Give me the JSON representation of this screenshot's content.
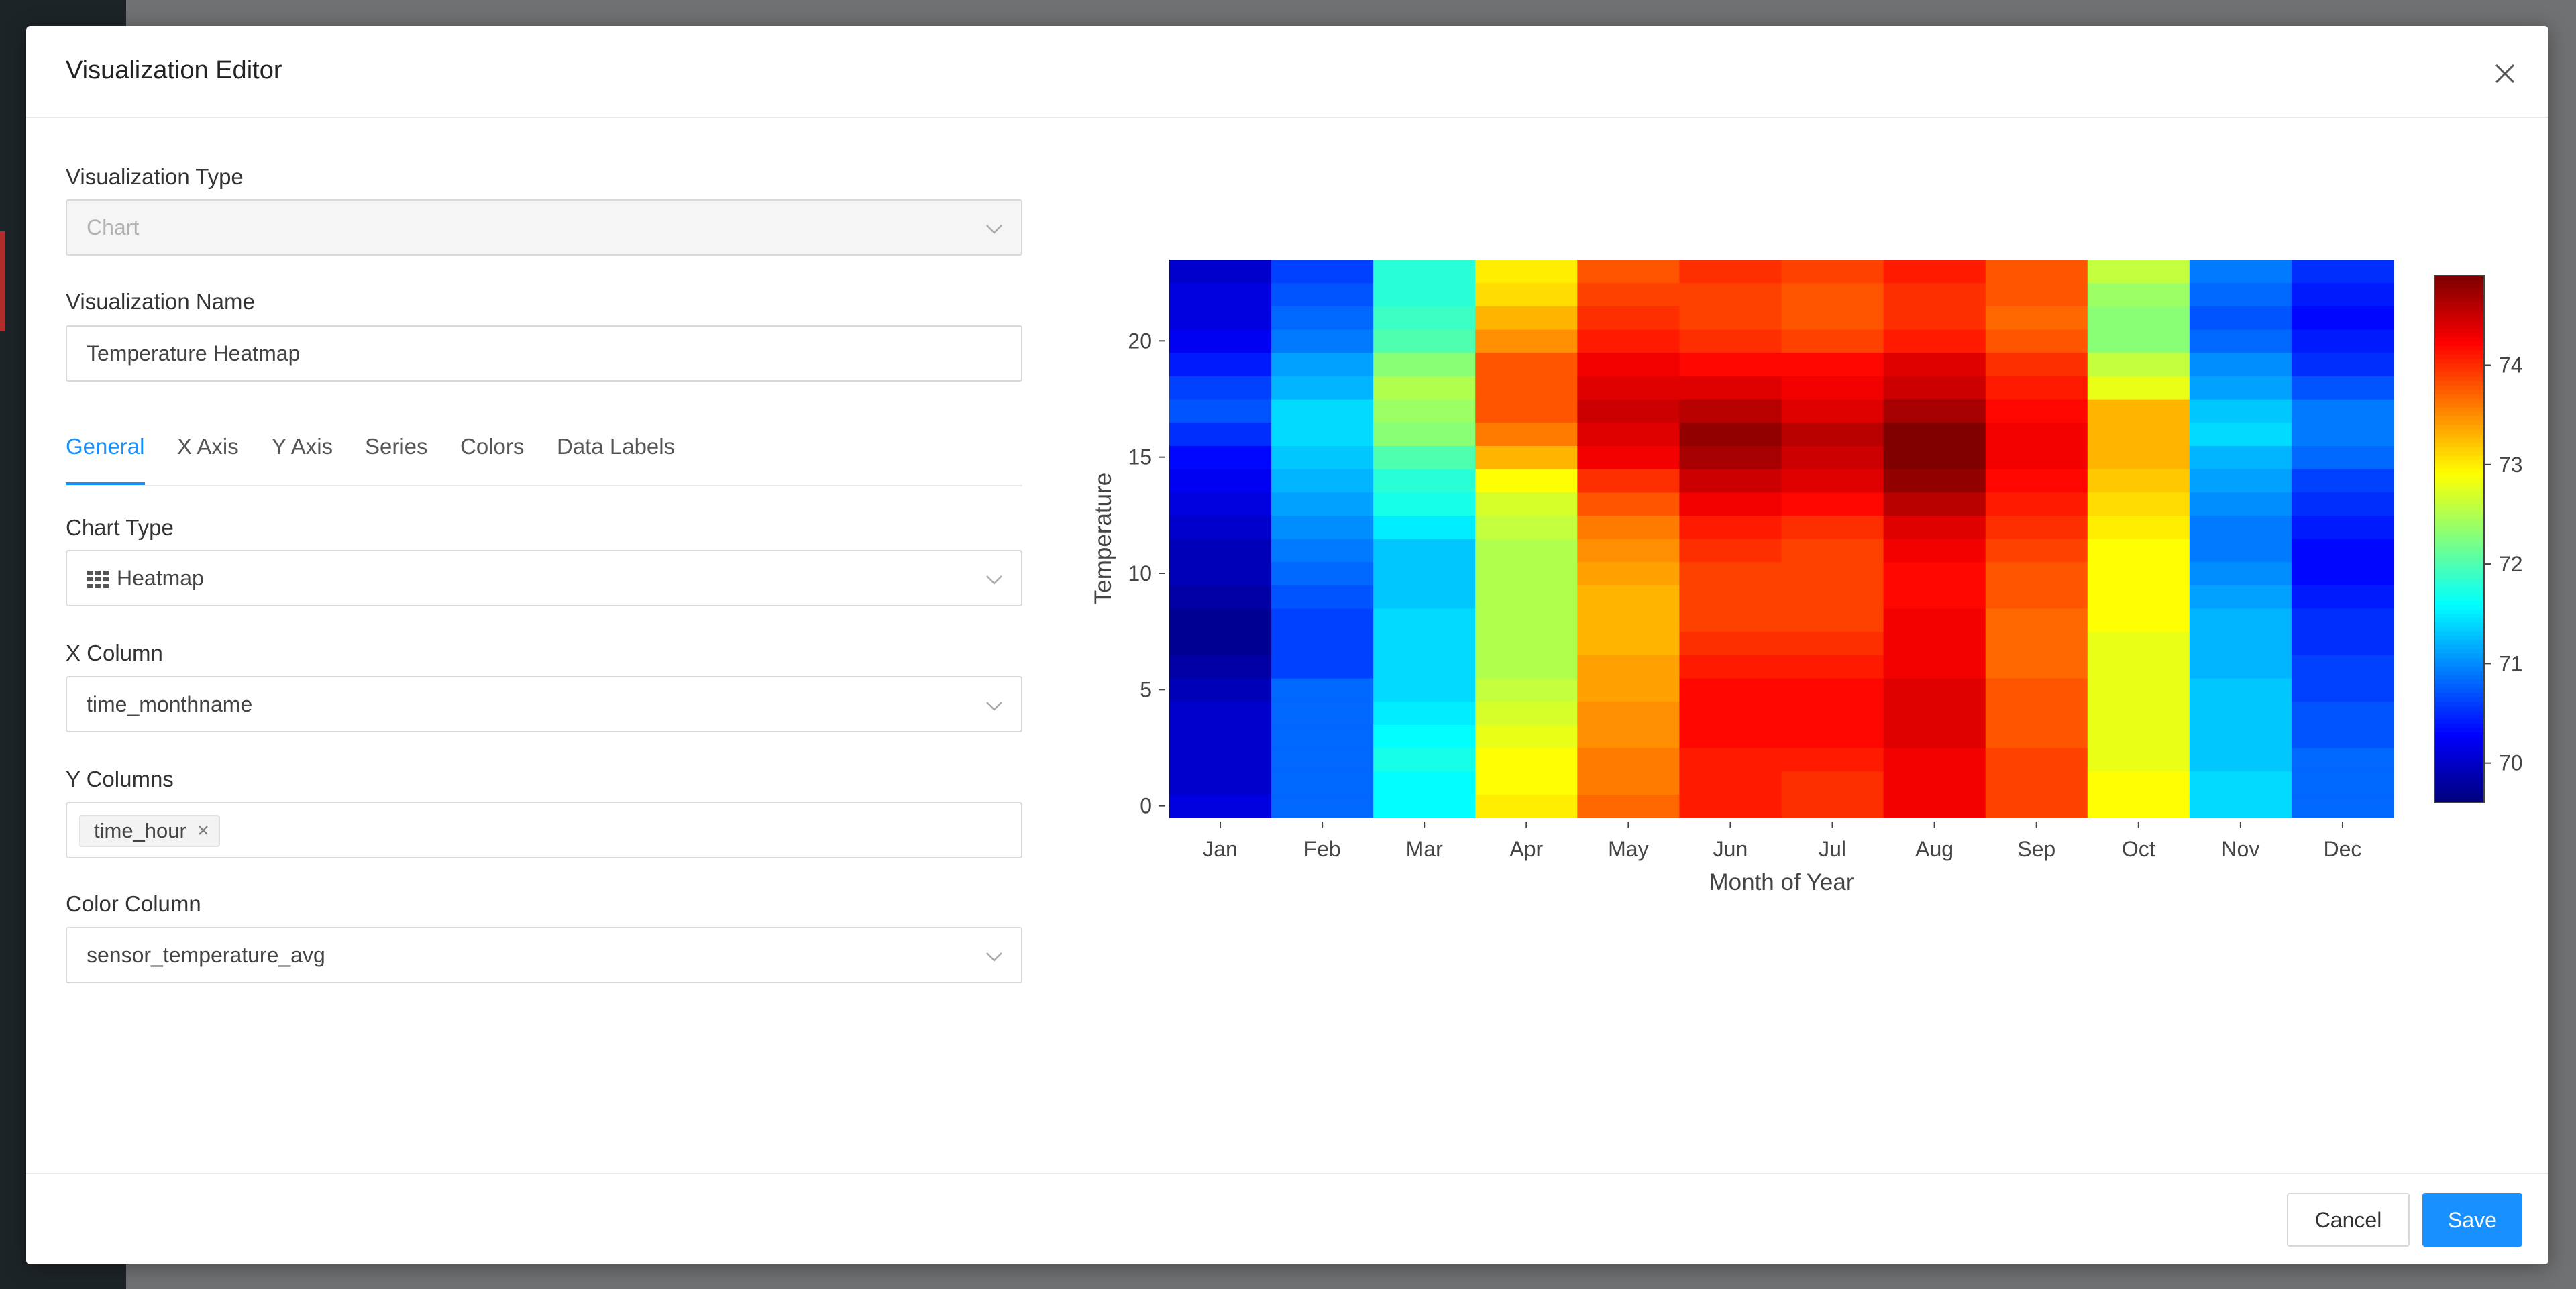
{
  "modal": {
    "title": "Visualization Editor"
  },
  "form": {
    "viz_type_label": "Visualization Type",
    "viz_type_value": "Chart",
    "viz_name_label": "Visualization Name",
    "viz_name_value": "Temperature Heatmap",
    "tabs": [
      "General",
      "X Axis",
      "Y Axis",
      "Series",
      "Colors",
      "Data Labels"
    ],
    "active_tab": "General",
    "chart_type_label": "Chart Type",
    "chart_type_value": "Heatmap",
    "x_column_label": "X Column",
    "x_column_value": "time_monthname",
    "y_columns_label": "Y Columns",
    "y_columns_tag": "time_hour",
    "color_column_label": "Color Column",
    "color_column_value": "sensor_temperature_avg"
  },
  "footer": {
    "cancel_label": "Cancel",
    "save_label": "Save"
  },
  "colors": {
    "primary": "#1890ff"
  },
  "icons": {
    "close": "close-icon",
    "chevron": "chevron-down-icon",
    "heatmap": "grid-icon",
    "tag_remove": "close-icon"
  },
  "chart_data": {
    "type": "heatmap",
    "colorscale": "jet",
    "x_categories": [
      "Jan",
      "Feb",
      "Mar",
      "Apr",
      "May",
      "Jun",
      "Jul",
      "Aug",
      "Sep",
      "Oct",
      "Nov",
      "Dec"
    ],
    "y_values": [
      0,
      1,
      2,
      3,
      4,
      5,
      6,
      7,
      8,
      9,
      10,
      11,
      12,
      13,
      14,
      15,
      16,
      17,
      18,
      19,
      20,
      21,
      22,
      23
    ],
    "y_ticks": [
      0,
      5,
      10,
      15,
      20
    ],
    "xlabel": "Month of Year",
    "ylabel": "Temperature",
    "colorbar_ticks": [
      70,
      71,
      72,
      73,
      74
    ],
    "zmin": 69.6,
    "zmax": 74.9,
    "z_by_month": [
      [
        70.1,
        70.0,
        70.0,
        70.0,
        70.0,
        69.9,
        69.8,
        69.7,
        69.7,
        69.8,
        69.9,
        69.9,
        70.0,
        70.1,
        70.2,
        70.3,
        70.5,
        70.7,
        70.6,
        70.4,
        70.2,
        70.1,
        70.1,
        70.0
      ],
      [
        70.8,
        70.8,
        70.8,
        70.8,
        70.8,
        70.8,
        70.6,
        70.6,
        70.6,
        70.7,
        70.8,
        70.9,
        71.0,
        71.1,
        71.2,
        71.3,
        71.4,
        71.4,
        71.2,
        71.1,
        70.9,
        70.8,
        70.7,
        70.6
      ],
      [
        71.6,
        71.6,
        71.7,
        71.6,
        71.5,
        71.4,
        71.4,
        71.4,
        71.4,
        71.3,
        71.3,
        71.3,
        71.5,
        71.7,
        71.8,
        72.0,
        72.3,
        72.4,
        72.5,
        72.3,
        72.0,
        71.9,
        71.8,
        71.8
      ],
      [
        73.0,
        72.9,
        72.9,
        72.8,
        72.7,
        72.6,
        72.5,
        72.5,
        72.5,
        72.5,
        72.5,
        72.5,
        72.6,
        72.7,
        72.9,
        73.3,
        73.6,
        73.8,
        73.8,
        73.8,
        73.5,
        73.3,
        73.1,
        73.0
      ],
      [
        73.7,
        73.6,
        73.6,
        73.5,
        73.5,
        73.4,
        73.4,
        73.3,
        73.3,
        73.3,
        73.4,
        73.5,
        73.6,
        73.8,
        74.0,
        74.3,
        74.4,
        74.5,
        74.4,
        74.3,
        74.1,
        74.0,
        73.9,
        73.8
      ],
      [
        74.1,
        74.1,
        74.1,
        74.2,
        74.2,
        74.2,
        74.1,
        74.0,
        73.9,
        73.9,
        73.9,
        74.0,
        74.1,
        74.3,
        74.5,
        74.7,
        74.8,
        74.6,
        74.4,
        74.2,
        74.0,
        73.9,
        73.9,
        74.0
      ],
      [
        74.0,
        74.0,
        74.1,
        74.2,
        74.2,
        74.2,
        74.1,
        74.0,
        73.9,
        73.9,
        73.9,
        73.9,
        74.0,
        74.2,
        74.4,
        74.5,
        74.6,
        74.4,
        74.3,
        74.2,
        73.9,
        73.8,
        73.8,
        73.9
      ],
      [
        74.3,
        74.3,
        74.3,
        74.4,
        74.4,
        74.4,
        74.3,
        74.3,
        74.3,
        74.2,
        74.2,
        74.3,
        74.4,
        74.6,
        74.8,
        74.9,
        74.9,
        74.7,
        74.5,
        74.4,
        74.1,
        74.0,
        74.0,
        74.1
      ],
      [
        73.9,
        73.9,
        73.9,
        73.8,
        73.8,
        73.8,
        73.7,
        73.7,
        73.7,
        73.8,
        73.8,
        73.9,
        74.0,
        74.1,
        74.2,
        74.3,
        74.3,
        74.2,
        74.1,
        74.0,
        73.8,
        73.7,
        73.8,
        73.8
      ],
      [
        72.9,
        72.9,
        72.8,
        72.8,
        72.8,
        72.8,
        72.8,
        72.8,
        72.9,
        72.9,
        72.9,
        72.9,
        73.0,
        73.1,
        73.2,
        73.3,
        73.3,
        73.3,
        72.8,
        72.6,
        72.3,
        72.3,
        72.4,
        72.6
      ],
      [
        71.4,
        71.4,
        71.3,
        71.3,
        71.3,
        71.3,
        71.2,
        71.2,
        71.2,
        71.1,
        71.0,
        70.9,
        70.9,
        71.0,
        71.1,
        71.2,
        71.4,
        71.3,
        71.1,
        71.0,
        70.8,
        70.7,
        70.8,
        70.9
      ],
      [
        70.8,
        70.8,
        70.8,
        70.7,
        70.7,
        70.6,
        70.6,
        70.5,
        70.5,
        70.4,
        70.3,
        70.3,
        70.4,
        70.5,
        70.6,
        70.8,
        70.9,
        70.9,
        70.7,
        70.5,
        70.4,
        70.3,
        70.4,
        70.5
      ]
    ]
  }
}
